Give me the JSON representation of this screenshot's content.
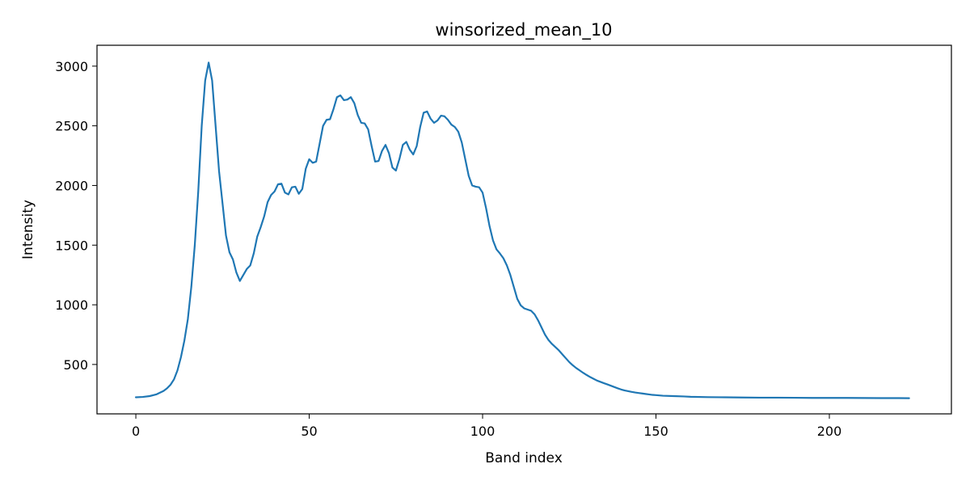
{
  "chart_data": {
    "type": "line",
    "title": "winsorized_mean_10",
    "xlabel": "Band index",
    "ylabel": "Intensity",
    "xlim": [
      -11.2,
      235.2
    ],
    "ylim": [
      86,
      3175
    ],
    "xticks": [
      0,
      50,
      100,
      150,
      200
    ],
    "yticks": [
      500,
      1000,
      1500,
      2000,
      2500,
      3000
    ],
    "grid": false,
    "series": [
      {
        "name": "winsorized_mean_10",
        "color": "#1f77b4",
        "points": [
          [
            0,
            225
          ],
          [
            2,
            228
          ],
          [
            4,
            235
          ],
          [
            6,
            250
          ],
          [
            8,
            278
          ],
          [
            9,
            300
          ],
          [
            10,
            330
          ],
          [
            11,
            375
          ],
          [
            12,
            450
          ],
          [
            13,
            560
          ],
          [
            14,
            700
          ],
          [
            15,
            880
          ],
          [
            16,
            1150
          ],
          [
            17,
            1500
          ],
          [
            18,
            1950
          ],
          [
            19,
            2500
          ],
          [
            20,
            2880
          ],
          [
            21,
            3030
          ],
          [
            22,
            2880
          ],
          [
            23,
            2500
          ],
          [
            24,
            2120
          ],
          [
            25,
            1850
          ],
          [
            26,
            1580
          ],
          [
            27,
            1440
          ],
          [
            28,
            1380
          ],
          [
            29,
            1270
          ],
          [
            30,
            1200
          ],
          [
            31,
            1250
          ],
          [
            32,
            1300
          ],
          [
            33,
            1330
          ],
          [
            34,
            1430
          ],
          [
            35,
            1570
          ],
          [
            36,
            1650
          ],
          [
            37,
            1740
          ],
          [
            38,
            1860
          ],
          [
            39,
            1920
          ],
          [
            40,
            1950
          ],
          [
            41,
            2010
          ],
          [
            42,
            2015
          ],
          [
            43,
            1940
          ],
          [
            44,
            1925
          ],
          [
            45,
            1985
          ],
          [
            46,
            1990
          ],
          [
            47,
            1930
          ],
          [
            48,
            1970
          ],
          [
            49,
            2140
          ],
          [
            50,
            2220
          ],
          [
            51,
            2190
          ],
          [
            52,
            2200
          ],
          [
            53,
            2350
          ],
          [
            54,
            2500
          ],
          [
            55,
            2550
          ],
          [
            56,
            2555
          ],
          [
            57,
            2640
          ],
          [
            58,
            2740
          ],
          [
            59,
            2755
          ],
          [
            60,
            2715
          ],
          [
            61,
            2720
          ],
          [
            62,
            2740
          ],
          [
            63,
            2690
          ],
          [
            64,
            2590
          ],
          [
            65,
            2525
          ],
          [
            66,
            2520
          ],
          [
            67,
            2470
          ],
          [
            68,
            2330
          ],
          [
            69,
            2200
          ],
          [
            70,
            2205
          ],
          [
            71,
            2290
          ],
          [
            72,
            2340
          ],
          [
            73,
            2270
          ],
          [
            74,
            2150
          ],
          [
            75,
            2125
          ],
          [
            76,
            2220
          ],
          [
            77,
            2340
          ],
          [
            78,
            2365
          ],
          [
            79,
            2300
          ],
          [
            80,
            2260
          ],
          [
            81,
            2330
          ],
          [
            82,
            2490
          ],
          [
            83,
            2610
          ],
          [
            84,
            2620
          ],
          [
            85,
            2560
          ],
          [
            86,
            2525
          ],
          [
            87,
            2545
          ],
          [
            88,
            2585
          ],
          [
            89,
            2580
          ],
          [
            90,
            2550
          ],
          [
            91,
            2510
          ],
          [
            92,
            2490
          ],
          [
            93,
            2450
          ],
          [
            94,
            2360
          ],
          [
            95,
            2220
          ],
          [
            96,
            2080
          ],
          [
            97,
            2000
          ],
          [
            98,
            1990
          ],
          [
            99,
            1985
          ],
          [
            100,
            1940
          ],
          [
            101,
            1810
          ],
          [
            102,
            1660
          ],
          [
            103,
            1540
          ],
          [
            104,
            1465
          ],
          [
            105,
            1430
          ],
          [
            106,
            1390
          ],
          [
            107,
            1330
          ],
          [
            108,
            1250
          ],
          [
            109,
            1150
          ],
          [
            110,
            1050
          ],
          [
            111,
            995
          ],
          [
            112,
            970
          ],
          [
            113,
            960
          ],
          [
            114,
            950
          ],
          [
            115,
            920
          ],
          [
            116,
            870
          ],
          [
            117,
            810
          ],
          [
            118,
            750
          ],
          [
            119,
            705
          ],
          [
            120,
            672
          ],
          [
            121,
            645
          ],
          [
            122,
            618
          ],
          [
            123,
            585
          ],
          [
            124,
            552
          ],
          [
            125,
            520
          ],
          [
            126,
            493
          ],
          [
            127,
            470
          ],
          [
            128,
            450
          ],
          [
            129,
            430
          ],
          [
            130,
            412
          ],
          [
            131,
            395
          ],
          [
            132,
            380
          ],
          [
            133,
            365
          ],
          [
            134,
            354
          ],
          [
            135,
            343
          ],
          [
            136,
            333
          ],
          [
            137,
            322
          ],
          [
            138,
            311
          ],
          [
            139,
            300
          ],
          [
            140,
            290
          ],
          [
            141,
            282
          ],
          [
            142,
            276
          ],
          [
            143,
            270
          ],
          [
            144,
            265
          ],
          [
            145,
            261
          ],
          [
            146,
            257
          ],
          [
            147,
            253
          ],
          [
            148,
            249
          ],
          [
            149,
            245
          ],
          [
            150,
            243
          ],
          [
            152,
            238
          ],
          [
            155,
            235
          ],
          [
            158,
            232
          ],
          [
            160,
            229
          ],
          [
            165,
            226
          ],
          [
            170,
            225
          ],
          [
            175,
            223
          ],
          [
            180,
            222
          ],
          [
            185,
            222
          ],
          [
            190,
            221
          ],
          [
            195,
            220
          ],
          [
            200,
            220
          ],
          [
            205,
            220
          ],
          [
            210,
            219
          ],
          [
            215,
            218
          ],
          [
            220,
            218
          ],
          [
            223,
            217
          ]
        ]
      }
    ]
  }
}
